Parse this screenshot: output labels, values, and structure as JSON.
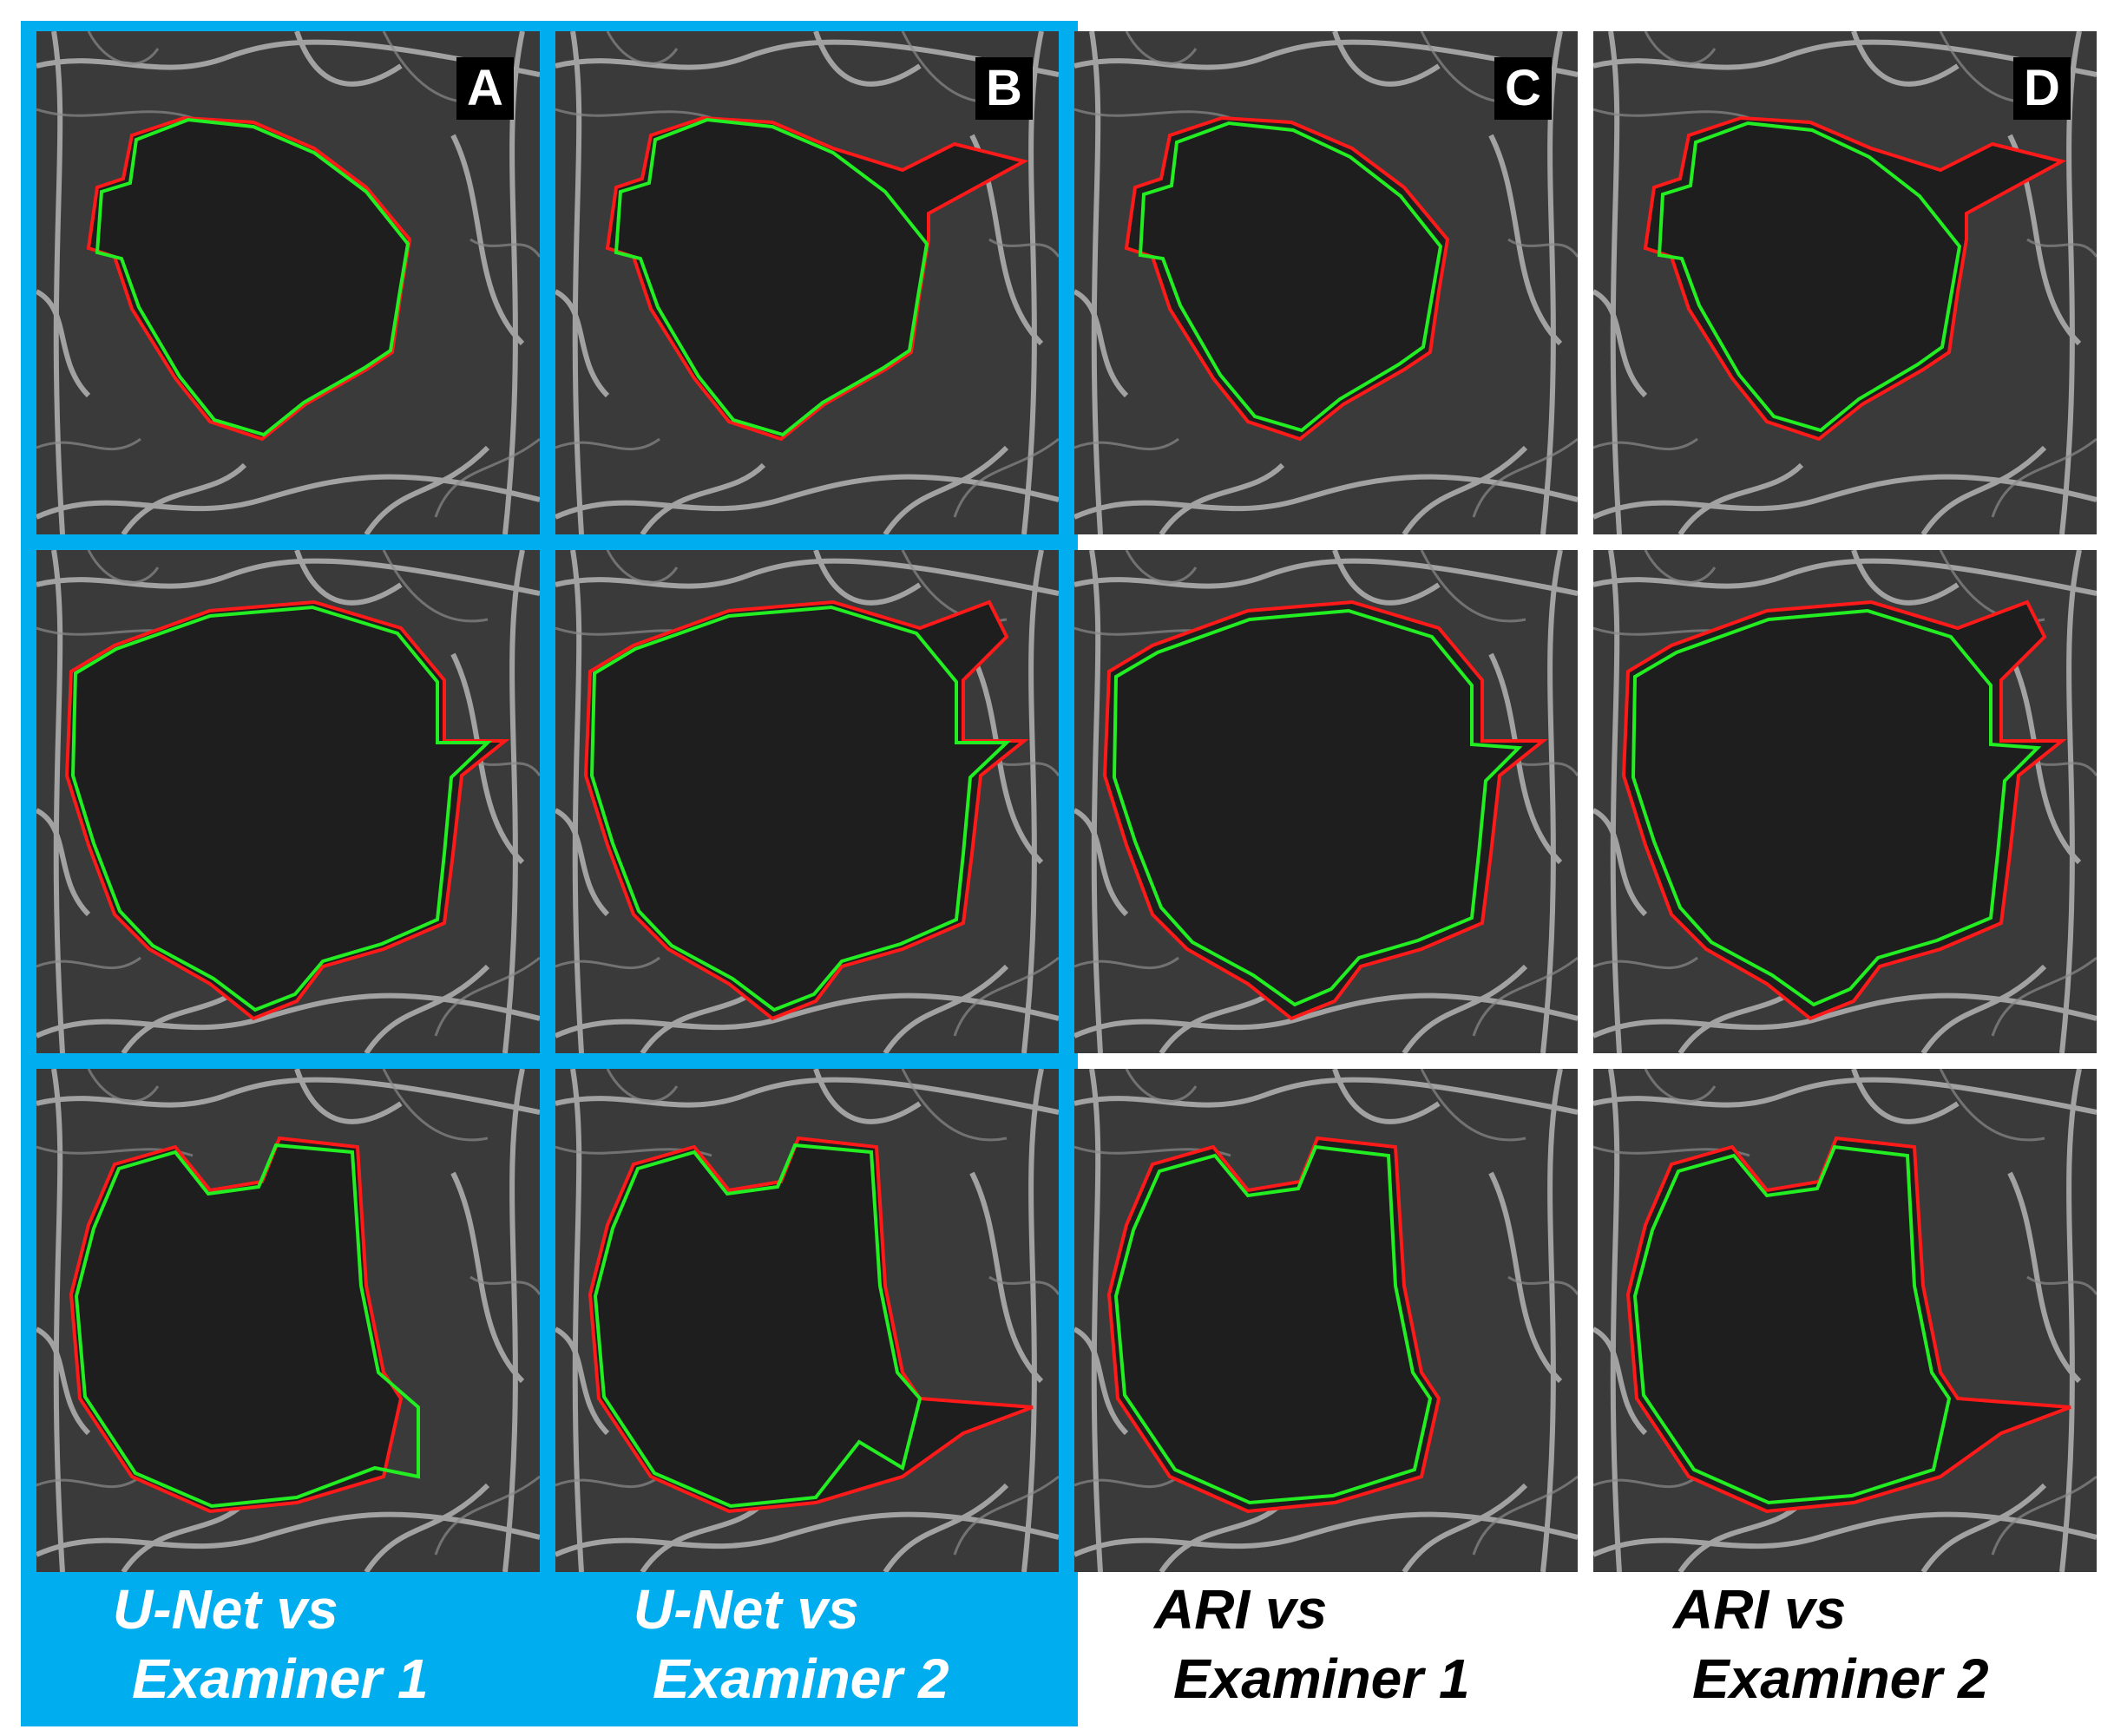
{
  "columns": [
    {
      "letter": "A",
      "caption_line1": "U-Net vs",
      "caption_line2": "Examiner 1",
      "highlighted": true
    },
    {
      "letter": "B",
      "caption_line1": "U-Net vs",
      "caption_line2": "Examiner 2",
      "highlighted": true
    },
    {
      "letter": "C",
      "caption_line1": "ARI vs",
      "caption_line2": "Examiner 1",
      "highlighted": false
    },
    {
      "letter": "D",
      "caption_line1": "ARI vs",
      "caption_line2": "Examiner 2",
      "highlighted": false
    }
  ],
  "colors": {
    "highlight": "#00aeef",
    "contour_red": "#ff1a1a",
    "contour_green": "#22ee22",
    "background_tissue": "#2b2b2b"
  }
}
